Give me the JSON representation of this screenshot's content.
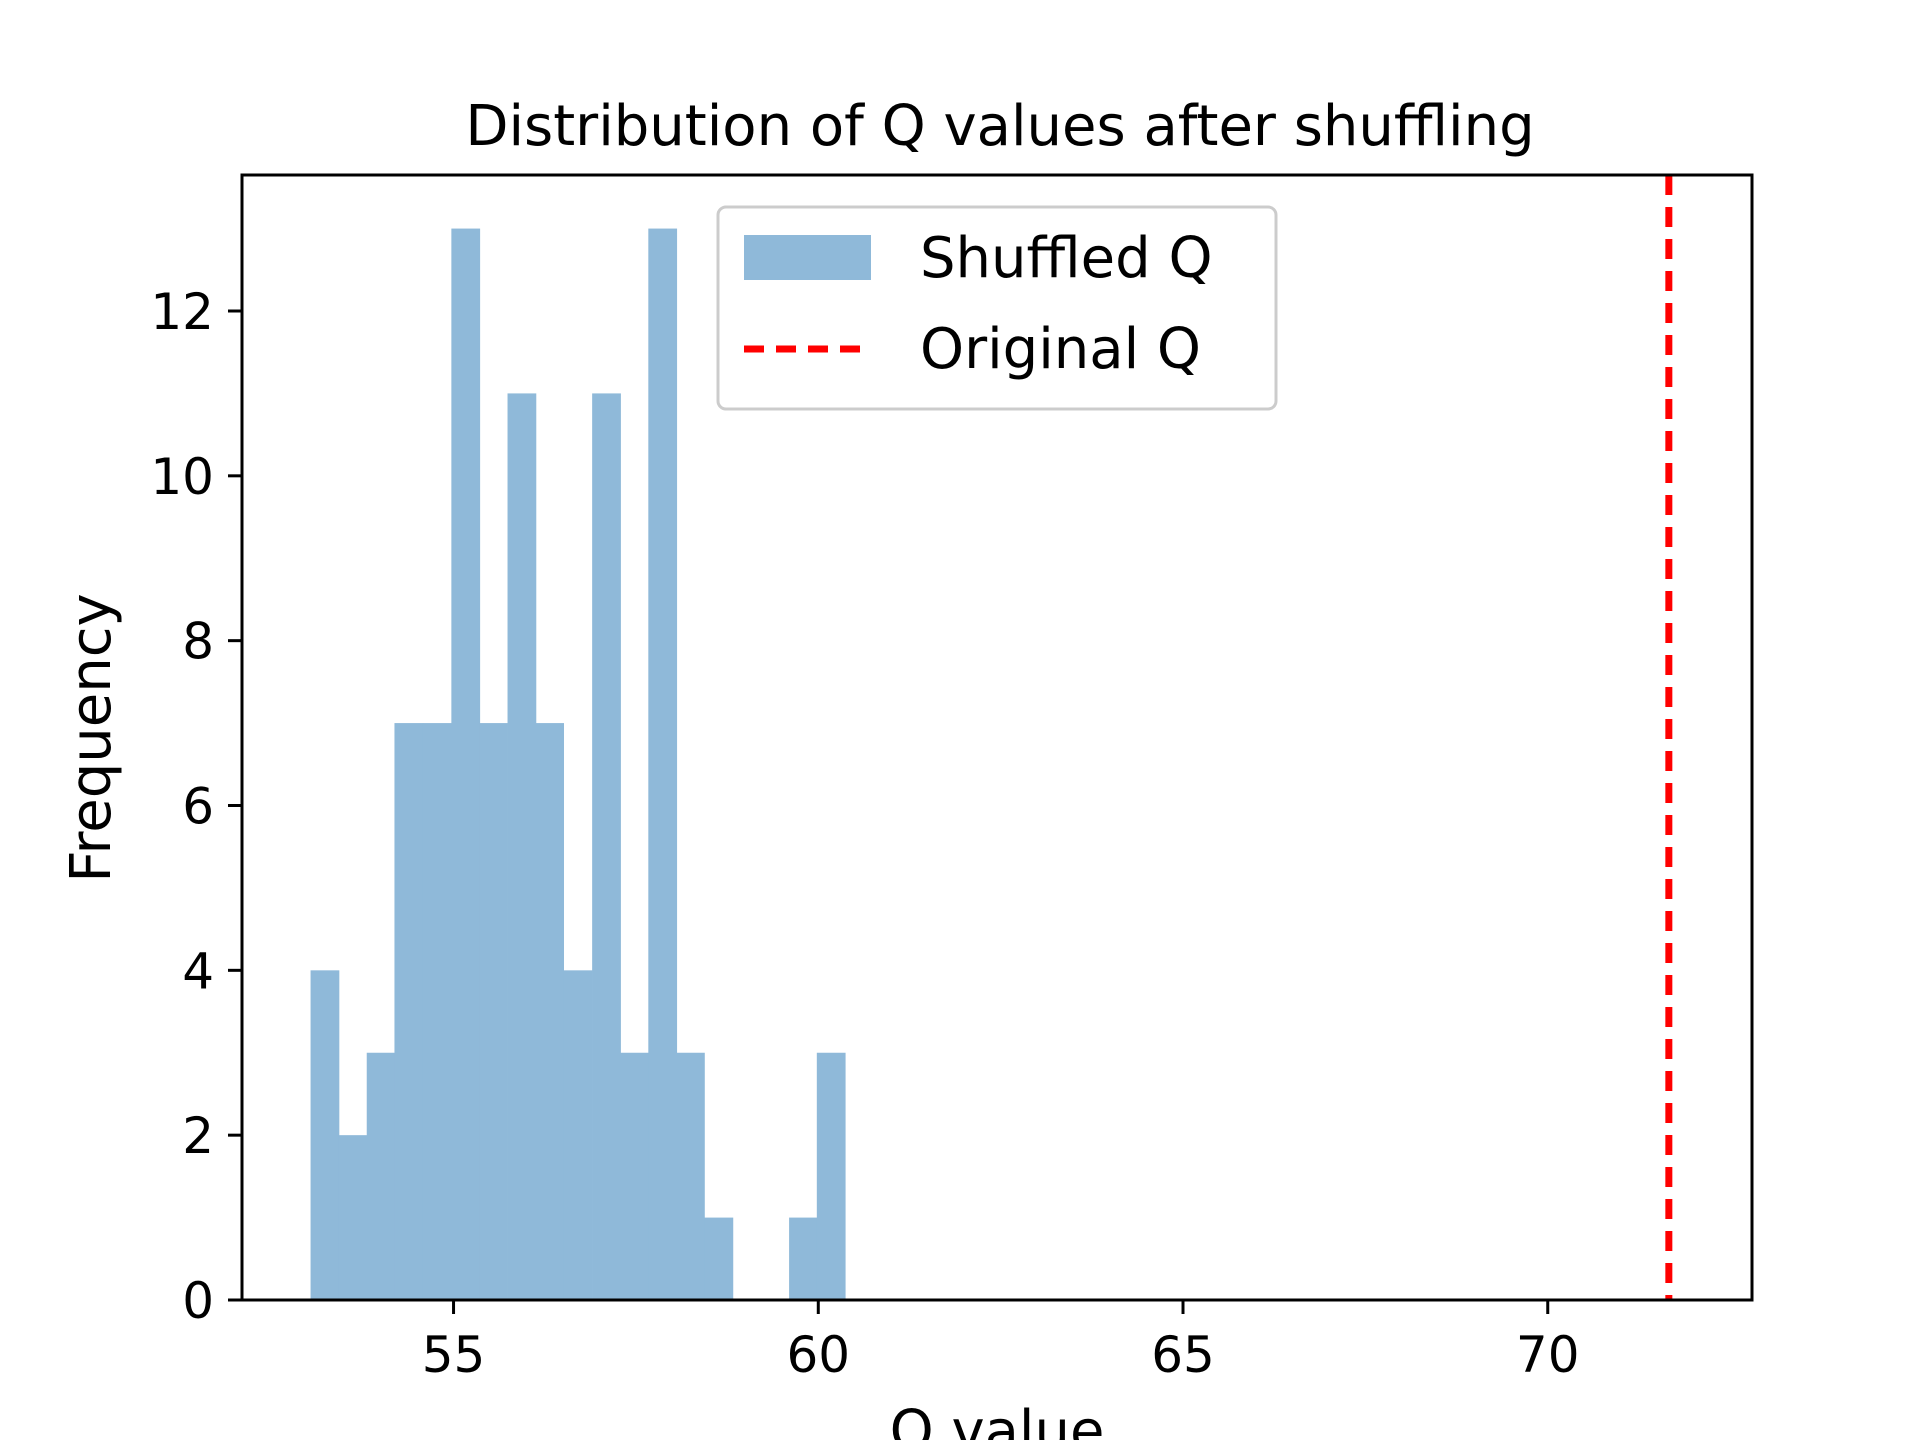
{
  "chart_data": {
    "type": "bar",
    "title": "Distribution of Q values after shuffling",
    "xlabel": "Q value",
    "ylabel": "Frequency",
    "xlim": [
      52.1,
      72.8
    ],
    "ylim": [
      0,
      13.65
    ],
    "xticks": [
      55,
      60,
      65,
      70
    ],
    "yticks": [
      0,
      2,
      4,
      6,
      8,
      10,
      12
    ],
    "grid": false,
    "legend_position": "upper center",
    "bin_width": 0.386,
    "series": [
      {
        "name": "Shuffled Q",
        "color": "#8fb9d9",
        "bins": [
          {
            "x0": 53.04,
            "count": 4
          },
          {
            "x0": 53.42,
            "count": 2
          },
          {
            "x0": 53.81,
            "count": 3
          },
          {
            "x0": 54.19,
            "count": 7
          },
          {
            "x0": 54.58,
            "count": 7
          },
          {
            "x0": 54.97,
            "count": 13
          },
          {
            "x0": 55.35,
            "count": 7
          },
          {
            "x0": 55.74,
            "count": 11
          },
          {
            "x0": 56.12,
            "count": 7
          },
          {
            "x0": 56.51,
            "count": 4
          },
          {
            "x0": 56.9,
            "count": 11
          },
          {
            "x0": 57.28,
            "count": 3
          },
          {
            "x0": 57.67,
            "count": 13
          },
          {
            "x0": 58.05,
            "count": 3
          },
          {
            "x0": 58.44,
            "count": 1
          },
          {
            "x0": 58.83,
            "count": 0
          },
          {
            "x0": 59.21,
            "count": 0
          },
          {
            "x0": 59.6,
            "count": 1
          },
          {
            "x0": 59.98,
            "count": 3
          }
        ]
      },
      {
        "name": "Original Q",
        "color": "#ff0000",
        "type": "vline",
        "x": 71.66
      }
    ]
  }
}
